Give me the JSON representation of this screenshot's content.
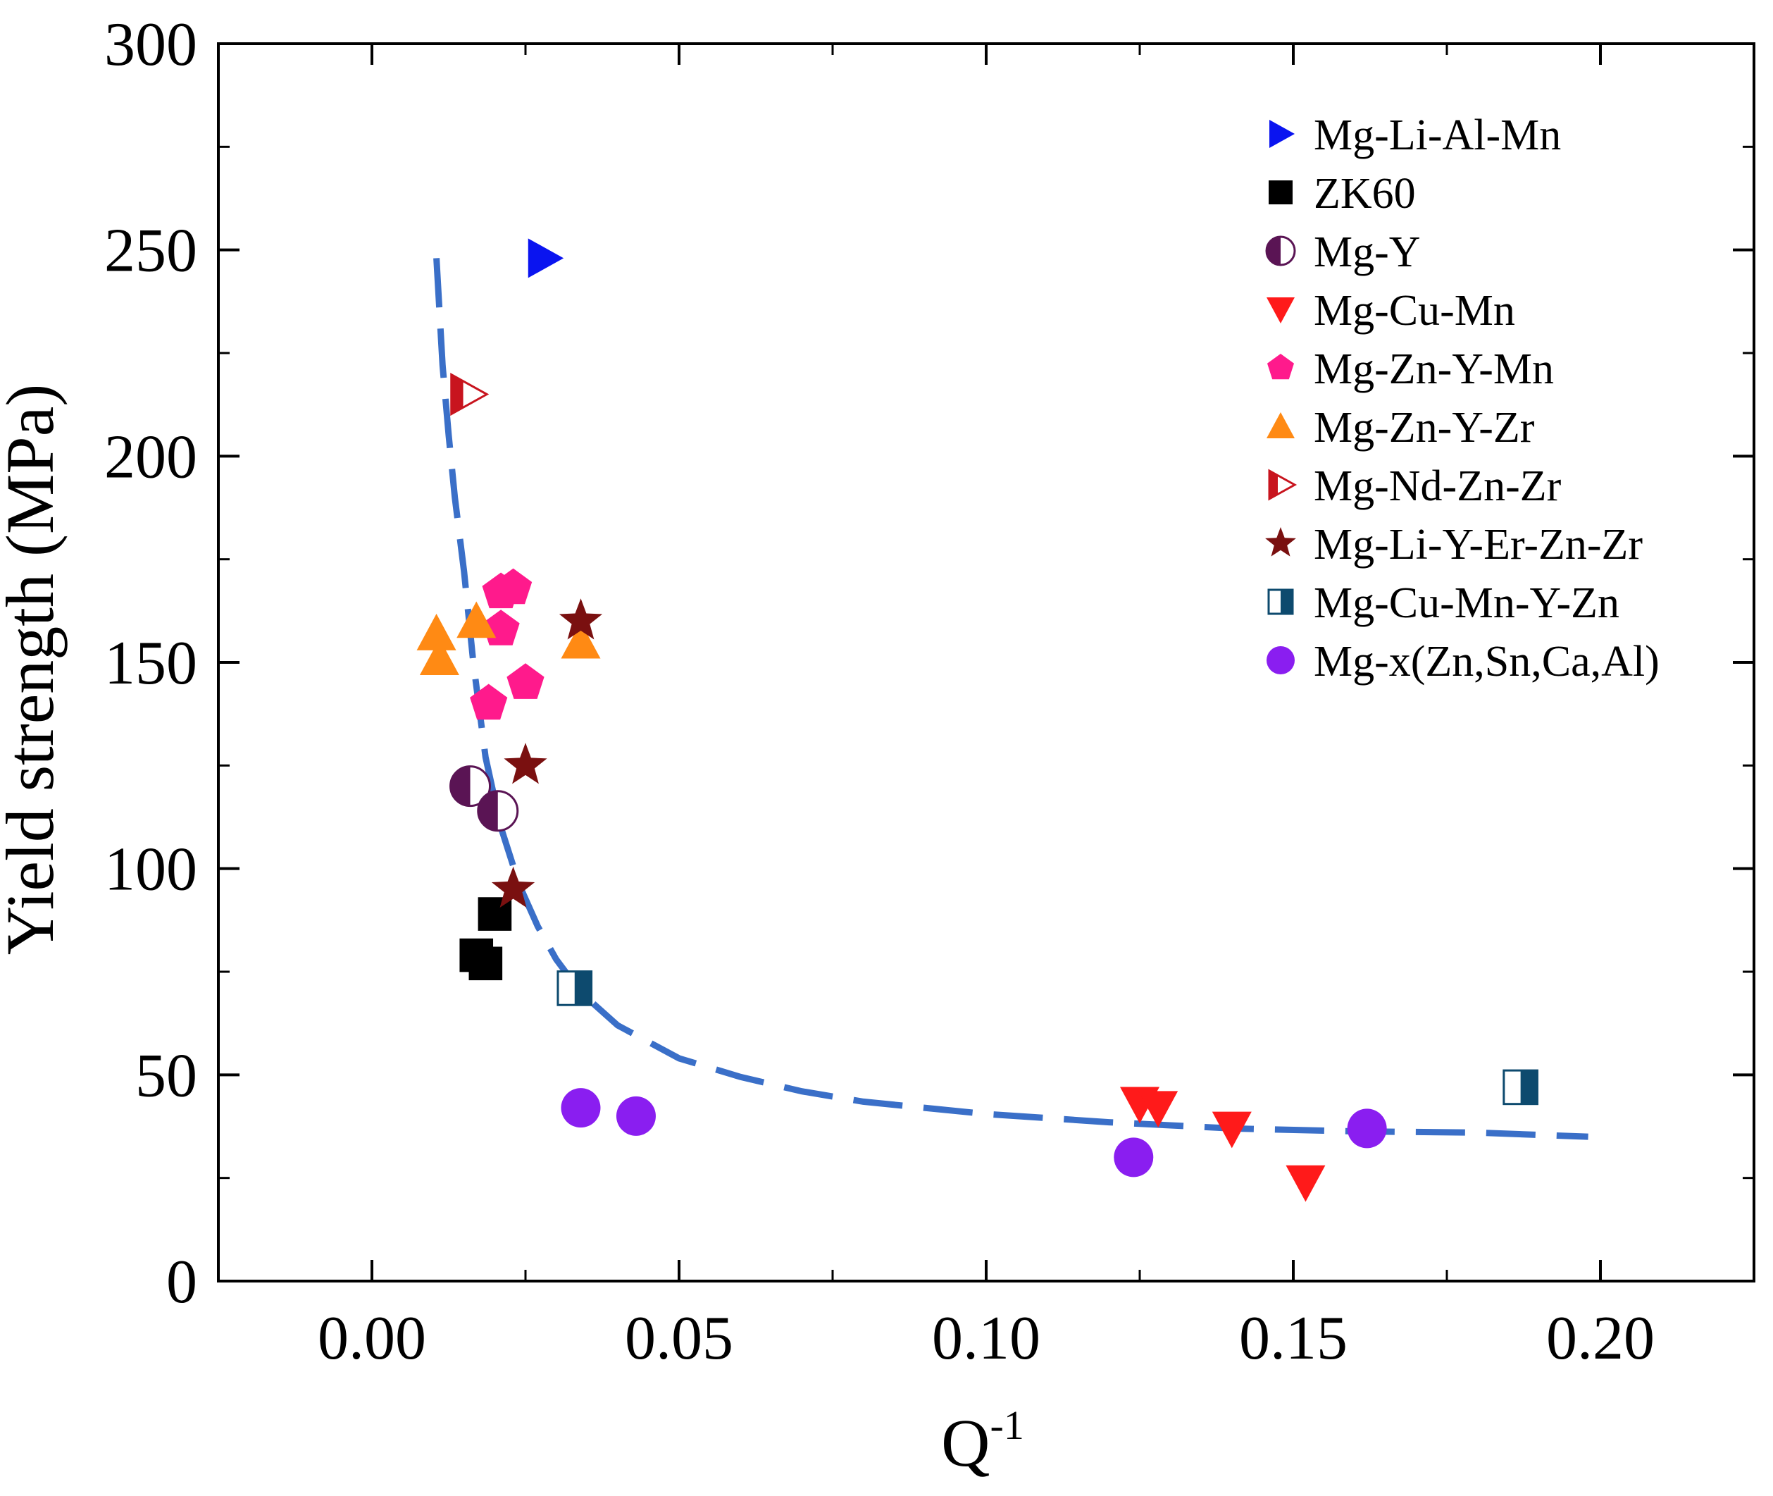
{
  "chart_data": {
    "type": "scatter",
    "title": "",
    "xlabel": "Q",
    "xlabel_superscript": "-1",
    "ylabel": "Yield strength (MPa)",
    "xlim": [
      -0.025,
      0.225
    ],
    "ylim": [
      0,
      300
    ],
    "x_ticks": [
      "0.00",
      "0.05",
      "0.10",
      "0.15",
      "0.20"
    ],
    "x_tick_values": [
      0,
      0.05,
      0.1,
      0.15,
      0.2
    ],
    "y_ticks": [
      "0",
      "50",
      "100",
      "150",
      "200",
      "250",
      "300"
    ],
    "y_tick_values": [
      0,
      50,
      100,
      150,
      200,
      250,
      300
    ],
    "grid": false,
    "legend_position": "top-right",
    "series": [
      {
        "name": "Mg-Li-Al-Mn",
        "marker": "triangle-right",
        "color": "#0a14f0",
        "points": [
          [
            0.028,
            248
          ]
        ]
      },
      {
        "name": "ZK60",
        "marker": "square",
        "color": "#000000",
        "points": [
          [
            0.017,
            79
          ],
          [
            0.0185,
            77
          ],
          [
            0.02,
            89
          ]
        ]
      },
      {
        "name": "Mg-Y",
        "marker": "circle-half-left",
        "color": "#5a1454",
        "points": [
          [
            0.016,
            120
          ],
          [
            0.0205,
            114
          ]
        ]
      },
      {
        "name": "Mg-Cu-Mn",
        "marker": "triangle-down",
        "color": "#ff1a1a",
        "points": [
          [
            0.125,
            43
          ],
          [
            0.128,
            42
          ],
          [
            0.14,
            37
          ],
          [
            0.152,
            24
          ]
        ]
      },
      {
        "name": "Mg-Zn-Y-Mn",
        "marker": "pentagon",
        "color": "#ff1a8c",
        "points": [
          [
            0.021,
            167
          ],
          [
            0.023,
            168
          ],
          [
            0.021,
            158
          ],
          [
            0.019,
            140
          ],
          [
            0.025,
            145
          ]
        ]
      },
      {
        "name": "Mg-Zn-Y-Zr",
        "marker": "triangle-up",
        "color": "#ff8a14",
        "points": [
          [
            0.0105,
            157
          ],
          [
            0.011,
            151
          ],
          [
            0.017,
            160
          ],
          [
            0.034,
            155
          ]
        ]
      },
      {
        "name": "Mg-Nd-Zn-Zr",
        "marker": "triangle-right-half",
        "color": "#c8141e",
        "points": [
          [
            0.0155,
            215
          ]
        ]
      },
      {
        "name": "Mg-Li-Y-Er-Zn-Zr",
        "marker": "star",
        "color": "#7a1010",
        "points": [
          [
            0.034,
            160
          ],
          [
            0.025,
            125
          ],
          [
            0.023,
            95
          ]
        ]
      },
      {
        "name": "Mg-Cu-Mn-Y-Zn",
        "marker": "square-half-right",
        "color": "#0d4a6e",
        "points": [
          [
            0.033,
            71
          ],
          [
            0.187,
            47
          ]
        ]
      },
      {
        "name": "Mg-x(Zn,Sn,Ca,Al)",
        "marker": "circle",
        "color": "#8a1ef0",
        "points": [
          [
            0.034,
            42
          ],
          [
            0.043,
            40
          ],
          [
            0.124,
            30
          ],
          [
            0.162,
            37
          ]
        ]
      }
    ],
    "fit_curve": {
      "style": "dashed",
      "color": "#3a6fc8",
      "points": [
        [
          0.0105,
          248
        ],
        [
          0.0115,
          222
        ],
        [
          0.0125,
          205
        ],
        [
          0.0135,
          190
        ],
        [
          0.015,
          172
        ],
        [
          0.0165,
          150
        ],
        [
          0.0185,
          127
        ],
        [
          0.021,
          110
        ],
        [
          0.024,
          96
        ],
        [
          0.027,
          86
        ],
        [
          0.03,
          78
        ],
        [
          0.034,
          70
        ],
        [
          0.04,
          62
        ],
        [
          0.05,
          54
        ],
        [
          0.06,
          49.5
        ],
        [
          0.07,
          46
        ],
        [
          0.08,
          43.5
        ],
        [
          0.1,
          40.5
        ],
        [
          0.12,
          38.5
        ],
        [
          0.14,
          37
        ],
        [
          0.16,
          36.3
        ],
        [
          0.18,
          36
        ],
        [
          0.198,
          35
        ]
      ]
    }
  }
}
